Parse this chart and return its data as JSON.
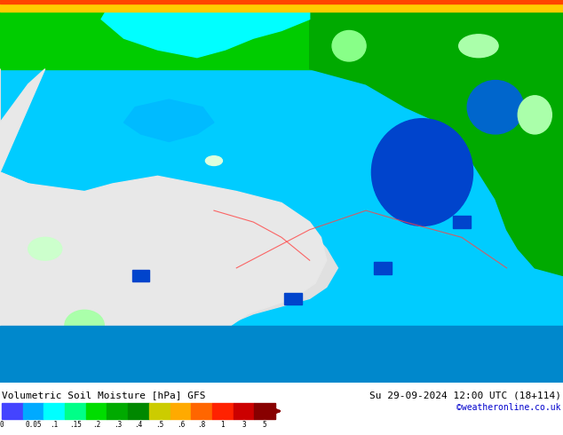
{
  "title_left": "Volumetric Soil Moisture [hPa] GFS",
  "title_right": "Su 29-09-2024 12:00 UTC (18+114)",
  "credit": "©weatheronline.co.uk",
  "colorbar_values": [
    0,
    0.05,
    0.1,
    0.15,
    0.2,
    0.3,
    0.4,
    0.5,
    0.6,
    0.8,
    1,
    3,
    5
  ],
  "colorbar_labels": [
    "0",
    "0.05",
    ".1",
    ".15",
    ".2",
    ".3",
    ".4",
    ".5",
    ".6",
    ".8",
    "1",
    "3",
    "5"
  ],
  "colorbar_colors": [
    "#4444ff",
    "#00aaff",
    "#00ffff",
    "#00ff88",
    "#00dd00",
    "#00aa00",
    "#008800",
    "#cccc00",
    "#ffaa00",
    "#ff6600",
    "#ff2200",
    "#cc0000",
    "#880000"
  ],
  "bg_color": "#ffffff",
  "map_bg": "#00aaff",
  "land_color": "#ccffcc",
  "land_light": "#eeffee",
  "text_color": "#000000",
  "credit_color": "#0000cc",
  "bottom_bar_color": "#00ccff",
  "figsize": [
    6.34,
    4.9
  ],
  "dpi": 100
}
